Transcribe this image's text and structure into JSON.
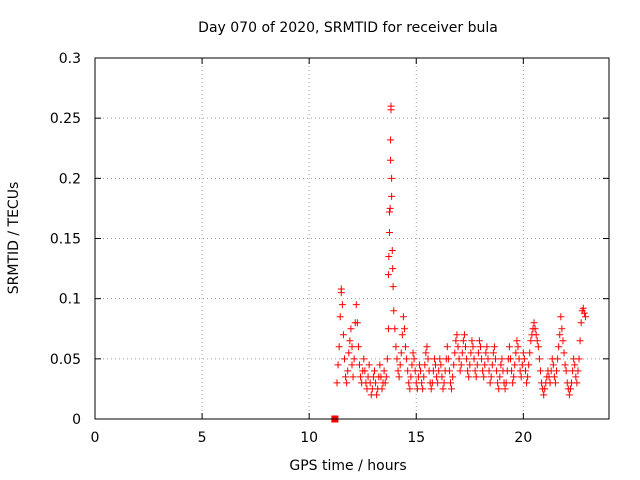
{
  "chart_data": {
    "type": "scatter",
    "title": "Day 070 of 2020, SRMTID for receiver bula",
    "xlabel": "GPS time / hours",
    "ylabel": "SRMTID / TECUs",
    "xlim": [
      0,
      24
    ],
    "ylim": [
      0,
      0.3
    ],
    "xticks": [
      0,
      5,
      10,
      15,
      20
    ],
    "xtick_labels": [
      "0",
      "5",
      "10",
      "15",
      "20"
    ],
    "yticks": [
      0,
      0.05,
      0.1,
      0.15,
      0.2,
      0.25,
      0.3
    ],
    "ytick_labels": [
      "0",
      "0.05",
      "0.1",
      "0.15",
      "0.2",
      "0.25",
      "0.3"
    ],
    "grid": true,
    "marker_color": "#ff0000",
    "series": [
      {
        "name": "SRMTID",
        "marker": "plus",
        "points": [
          [
            11.3,
            0.03
          ],
          [
            11.35,
            0.045
          ],
          [
            11.4,
            0.06
          ],
          [
            11.45,
            0.085
          ],
          [
            11.5,
            0.105
          ],
          [
            11.5,
            0.108
          ],
          [
            11.55,
            0.095
          ],
          [
            11.6,
            0.07
          ],
          [
            11.65,
            0.05
          ],
          [
            11.7,
            0.035
          ],
          [
            11.75,
            0.03
          ],
          [
            11.8,
            0.04
          ],
          [
            11.85,
            0.055
          ],
          [
            11.9,
            0.065
          ],
          [
            11.95,
            0.075
          ],
          [
            12.0,
            0.06
          ],
          [
            12.0,
            0.045
          ],
          [
            12.05,
            0.035
          ],
          [
            12.1,
            0.05
          ],
          [
            12.15,
            0.08
          ],
          [
            12.2,
            0.095
          ],
          [
            12.25,
            0.08
          ],
          [
            12.3,
            0.06
          ],
          [
            12.35,
            0.045
          ],
          [
            12.4,
            0.035
          ],
          [
            12.45,
            0.03
          ],
          [
            12.5,
            0.04
          ],
          [
            12.55,
            0.05
          ],
          [
            12.6,
            0.04
          ],
          [
            12.65,
            0.03
          ],
          [
            12.7,
            0.025
          ],
          [
            12.75,
            0.035
          ],
          [
            12.8,
            0.045
          ],
          [
            12.85,
            0.03
          ],
          [
            12.9,
            0.02
          ],
          [
            12.95,
            0.025
          ],
          [
            13.0,
            0.035
          ],
          [
            13.05,
            0.04
          ],
          [
            13.1,
            0.03
          ],
          [
            13.15,
            0.02
          ],
          [
            13.2,
            0.025
          ],
          [
            13.25,
            0.035
          ],
          [
            13.3,
            0.045
          ],
          [
            13.35,
            0.035
          ],
          [
            13.4,
            0.025
          ],
          [
            13.45,
            0.03
          ],
          [
            13.5,
            0.04
          ],
          [
            13.55,
            0.03
          ],
          [
            13.6,
            0.035
          ],
          [
            13.65,
            0.05
          ],
          [
            13.7,
            0.075
          ],
          [
            13.7,
            0.12
          ],
          [
            13.72,
            0.135
          ],
          [
            13.75,
            0.155
          ],
          [
            13.75,
            0.172
          ],
          [
            13.78,
            0.175
          ],
          [
            13.8,
            0.215
          ],
          [
            13.8,
            0.232
          ],
          [
            13.82,
            0.257
          ],
          [
            13.82,
            0.26
          ],
          [
            13.85,
            0.2
          ],
          [
            13.85,
            0.185
          ],
          [
            13.88,
            0.14
          ],
          [
            13.9,
            0.125
          ],
          [
            13.92,
            0.11
          ],
          [
            13.95,
            0.09
          ],
          [
            14.0,
            0.075
          ],
          [
            14.05,
            0.06
          ],
          [
            14.1,
            0.05
          ],
          [
            14.15,
            0.04
          ],
          [
            14.2,
            0.035
          ],
          [
            14.25,
            0.045
          ],
          [
            14.3,
            0.055
          ],
          [
            14.35,
            0.07
          ],
          [
            14.4,
            0.085
          ],
          [
            14.45,
            0.075
          ],
          [
            14.5,
            0.06
          ],
          [
            14.55,
            0.05
          ],
          [
            14.6,
            0.04
          ],
          [
            14.65,
            0.03
          ],
          [
            14.7,
            0.025
          ],
          [
            14.75,
            0.035
          ],
          [
            14.8,
            0.045
          ],
          [
            14.85,
            0.055
          ],
          [
            14.9,
            0.05
          ],
          [
            14.95,
            0.04
          ],
          [
            15.0,
            0.03
          ],
          [
            15.05,
            0.025
          ],
          [
            15.1,
            0.035
          ],
          [
            15.15,
            0.045
          ],
          [
            15.2,
            0.04
          ],
          [
            15.25,
            0.03
          ],
          [
            15.3,
            0.025
          ],
          [
            15.35,
            0.035
          ],
          [
            15.4,
            0.045
          ],
          [
            15.45,
            0.055
          ],
          [
            15.5,
            0.06
          ],
          [
            15.55,
            0.05
          ],
          [
            15.6,
            0.04
          ],
          [
            15.65,
            0.03
          ],
          [
            15.7,
            0.025
          ],
          [
            15.75,
            0.03
          ],
          [
            15.8,
            0.04
          ],
          [
            15.85,
            0.05
          ],
          [
            15.9,
            0.045
          ],
          [
            15.95,
            0.035
          ],
          [
            16.0,
            0.03
          ],
          [
            16.05,
            0.04
          ],
          [
            16.1,
            0.05
          ],
          [
            16.15,
            0.045
          ],
          [
            16.2,
            0.035
          ],
          [
            16.25,
            0.025
          ],
          [
            16.3,
            0.03
          ],
          [
            16.35,
            0.04
          ],
          [
            16.4,
            0.05
          ],
          [
            16.45,
            0.06
          ],
          [
            16.5,
            0.05
          ],
          [
            16.55,
            0.04
          ],
          [
            16.6,
            0.03
          ],
          [
            16.65,
            0.025
          ],
          [
            16.7,
            0.035
          ],
          [
            16.75,
            0.045
          ],
          [
            16.8,
            0.055
          ],
          [
            16.85,
            0.065
          ],
          [
            16.9,
            0.07
          ],
          [
            16.95,
            0.06
          ],
          [
            17.0,
            0.05
          ],
          [
            17.05,
            0.04
          ],
          [
            17.1,
            0.045
          ],
          [
            17.15,
            0.055
          ],
          [
            17.2,
            0.065
          ],
          [
            17.25,
            0.07
          ],
          [
            17.3,
            0.06
          ],
          [
            17.35,
            0.05
          ],
          [
            17.4,
            0.04
          ],
          [
            17.45,
            0.035
          ],
          [
            17.5,
            0.045
          ],
          [
            17.55,
            0.055
          ],
          [
            17.6,
            0.065
          ],
          [
            17.65,
            0.06
          ],
          [
            17.7,
            0.05
          ],
          [
            17.75,
            0.04
          ],
          [
            17.8,
            0.035
          ],
          [
            17.85,
            0.045
          ],
          [
            17.9,
            0.055
          ],
          [
            17.95,
            0.065
          ],
          [
            18.0,
            0.06
          ],
          [
            18.05,
            0.05
          ],
          [
            18.1,
            0.04
          ],
          [
            18.15,
            0.035
          ],
          [
            18.2,
            0.045
          ],
          [
            18.25,
            0.055
          ],
          [
            18.3,
            0.06
          ],
          [
            18.35,
            0.05
          ],
          [
            18.4,
            0.04
          ],
          [
            18.45,
            0.03
          ],
          [
            18.5,
            0.035
          ],
          [
            18.55,
            0.045
          ],
          [
            18.6,
            0.055
          ],
          [
            18.65,
            0.06
          ],
          [
            18.7,
            0.05
          ],
          [
            18.75,
            0.04
          ],
          [
            18.8,
            0.03
          ],
          [
            18.85,
            0.025
          ],
          [
            18.9,
            0.035
          ],
          [
            18.95,
            0.045
          ],
          [
            19.0,
            0.05
          ],
          [
            19.05,
            0.04
          ],
          [
            19.1,
            0.03
          ],
          [
            19.15,
            0.025
          ],
          [
            19.2,
            0.03
          ],
          [
            19.25,
            0.04
          ],
          [
            19.3,
            0.05
          ],
          [
            19.35,
            0.06
          ],
          [
            19.4,
            0.05
          ],
          [
            19.45,
            0.04
          ],
          [
            19.5,
            0.03
          ],
          [
            19.55,
            0.035
          ],
          [
            19.6,
            0.045
          ],
          [
            19.65,
            0.055
          ],
          [
            19.7,
            0.065
          ],
          [
            19.75,
            0.06
          ],
          [
            19.8,
            0.05
          ],
          [
            19.85,
            0.04
          ],
          [
            19.9,
            0.035
          ],
          [
            19.95,
            0.045
          ],
          [
            20.0,
            0.055
          ],
          [
            20.05,
            0.05
          ],
          [
            20.1,
            0.04
          ],
          [
            20.15,
            0.03
          ],
          [
            20.2,
            0.035
          ],
          [
            20.25,
            0.045
          ],
          [
            20.3,
            0.055
          ],
          [
            20.35,
            0.065
          ],
          [
            20.4,
            0.07
          ],
          [
            20.45,
            0.075
          ],
          [
            20.5,
            0.08
          ],
          [
            20.55,
            0.075
          ],
          [
            20.6,
            0.07
          ],
          [
            20.65,
            0.065
          ],
          [
            20.7,
            0.06
          ],
          [
            20.75,
            0.05
          ],
          [
            20.8,
            0.04
          ],
          [
            20.85,
            0.03
          ],
          [
            20.9,
            0.025
          ],
          [
            20.95,
            0.02
          ],
          [
            21.0,
            0.025
          ],
          [
            21.05,
            0.03
          ],
          [
            21.1,
            0.035
          ],
          [
            21.15,
            0.04
          ],
          [
            21.2,
            0.035
          ],
          [
            21.25,
            0.03
          ],
          [
            21.3,
            0.04
          ],
          [
            21.35,
            0.05
          ],
          [
            21.4,
            0.045
          ],
          [
            21.45,
            0.035
          ],
          [
            21.5,
            0.03
          ],
          [
            21.55,
            0.04
          ],
          [
            21.6,
            0.05
          ],
          [
            21.65,
            0.06
          ],
          [
            21.7,
            0.07
          ],
          [
            21.75,
            0.085
          ],
          [
            21.8,
            0.075
          ],
          [
            21.85,
            0.065
          ],
          [
            21.9,
            0.055
          ],
          [
            21.95,
            0.045
          ],
          [
            22.0,
            0.04
          ],
          [
            22.05,
            0.03
          ],
          [
            22.1,
            0.025
          ],
          [
            22.15,
            0.02
          ],
          [
            22.2,
            0.025
          ],
          [
            22.25,
            0.03
          ],
          [
            22.3,
            0.04
          ],
          [
            22.35,
            0.05
          ],
          [
            22.4,
            0.045
          ],
          [
            22.45,
            0.035
          ],
          [
            22.5,
            0.03
          ],
          [
            22.55,
            0.04
          ],
          [
            22.6,
            0.05
          ],
          [
            22.65,
            0.065
          ],
          [
            22.7,
            0.08
          ],
          [
            22.75,
            0.09
          ],
          [
            22.8,
            0.092
          ],
          [
            22.85,
            0.088
          ],
          [
            22.9,
            0.085
          ]
        ]
      }
    ],
    "special_points": [
      {
        "name": "filled-square-marker",
        "x": 11.2,
        "y": 0.0
      }
    ]
  }
}
